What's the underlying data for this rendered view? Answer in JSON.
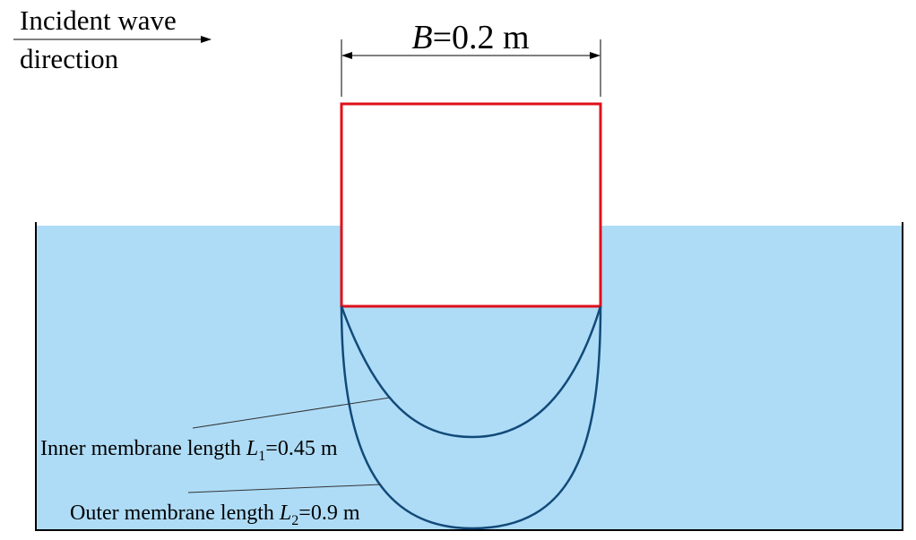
{
  "incident_wave": {
    "lines": [
      "Incident wave",
      "direction"
    ]
  },
  "width_dimension": {
    "symbol": "B",
    "text": "=0.2 m"
  },
  "inner_membrane": {
    "text": "Inner membrane length ",
    "symbol": "L",
    "subscript": "1",
    "value": "=0.45 m"
  },
  "outer_membrane": {
    "text": "Outer membrane length ",
    "symbol": "L",
    "subscript": "2",
    "value": "=0.9 m"
  }
}
